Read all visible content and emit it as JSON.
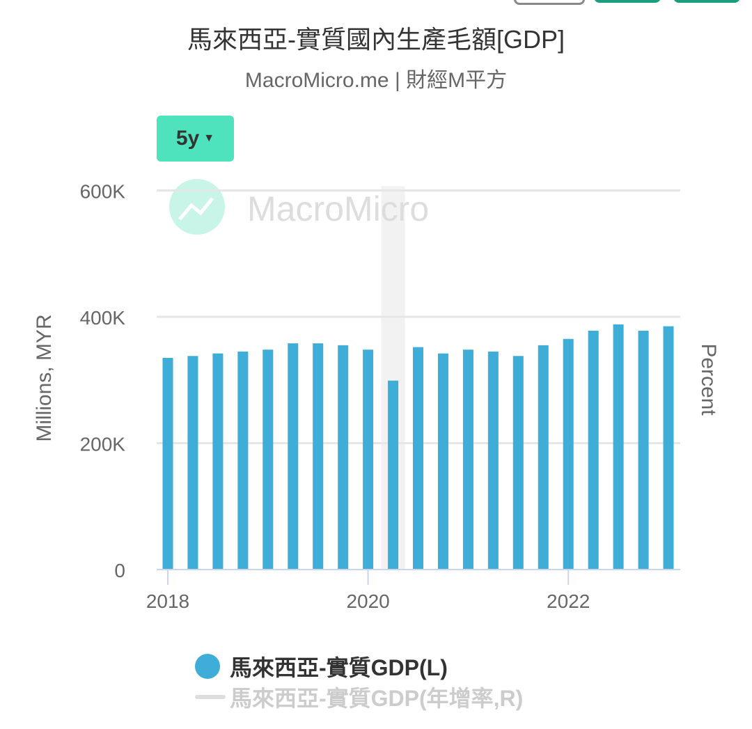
{
  "title": "馬來西亞-實質國內生產毛額[GDP]",
  "subtitle": "MacroMicro.me | 財經M平方",
  "range_button": {
    "label": "5y",
    "icon": "caret-down-icon"
  },
  "watermark": "MacroMicro",
  "colors": {
    "bar": "#3eadd8",
    "accent": "#4ee3bd",
    "highlight": "#f2f2f2"
  },
  "chart_data": {
    "type": "bar",
    "title": "馬來西亞-實質國內生產毛額[GDP]",
    "ylabel": "Millions, MYR",
    "y2label": "Percent",
    "ylim": [
      0,
      600000
    ],
    "yticks": [
      "0",
      "200K",
      "400K",
      "600K"
    ],
    "yticks_values": [
      0,
      200000,
      400000,
      600000
    ],
    "xticks": [
      "2018",
      "2020",
      "2022"
    ],
    "categories": [
      "2018Q1",
      "2018Q2",
      "2018Q3",
      "2018Q4",
      "2019Q1",
      "2019Q2",
      "2019Q3",
      "2019Q4",
      "2020Q1",
      "2020Q2",
      "2020Q3",
      "2020Q4",
      "2021Q1",
      "2021Q2",
      "2021Q3",
      "2021Q4",
      "2022Q1",
      "2022Q2",
      "2022Q3",
      "2022Q4",
      "2023Q1"
    ],
    "values": [
      335000,
      338000,
      342000,
      345000,
      348000,
      358000,
      358000,
      355000,
      348000,
      299000,
      352000,
      342000,
      348000,
      345000,
      338000,
      355000,
      365000,
      378000,
      388000,
      378000,
      385000
    ],
    "highlighted_category": "2020Q2",
    "grid": true,
    "legend_position": "bottom",
    "legend": [
      {
        "name": "馬來西亞-實質GDP(L)",
        "active": true
      },
      {
        "name": "馬來西亞-實質GDP(年增率,R)",
        "active": false
      }
    ]
  }
}
